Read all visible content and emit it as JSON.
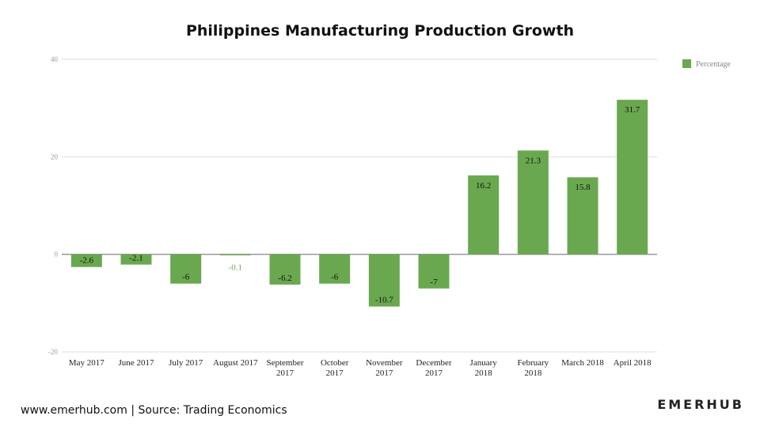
{
  "chart_data": {
    "type": "bar",
    "title": "Philippines Manufacturing Production Growth",
    "categories": [
      "May 2017",
      "June 2017",
      "July 2017",
      "August 2017",
      "September 2017",
      "October 2017",
      "November 2017",
      "December 2017",
      "January 2018",
      "February 2018",
      "March 2018",
      "April 2018"
    ],
    "series": [
      {
        "name": "Percentage",
        "values": [
          -2.6,
          -2.1,
          -6,
          -0.1,
          -6.2,
          -6,
          -10.7,
          -7,
          16.2,
          21.3,
          15.8,
          31.7
        ],
        "labels": [
          "-2.6",
          "-2.1",
          "-6",
          "-0.1",
          "-6.2",
          "-6",
          "-10.7",
          "-7",
          "16.2",
          "21.3",
          "15.8",
          "31.7"
        ]
      }
    ],
    "ylim": [
      -20,
      40
    ],
    "yticks": [
      -20,
      0,
      20,
      40
    ],
    "xlabel": "",
    "ylabel": "",
    "grid": true,
    "legend_position": "top-right",
    "bar_color": "#6aa84f",
    "label_dark_color": "#111111",
    "label_green_color": "#6aa84f"
  },
  "footer": {
    "source": "www.emerhub.com | Source: Trading Economics",
    "brand": "EMERHUB"
  }
}
